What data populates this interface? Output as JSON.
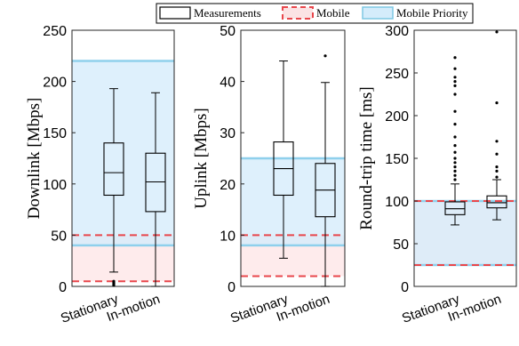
{
  "legend": {
    "items": [
      {
        "label": "Measurements",
        "style": "box",
        "stroke": "#000000",
        "fill": "#ffffff"
      },
      {
        "label": "Mobile",
        "style": "dashed-box",
        "stroke": "#e8474c",
        "fill": "#fbe3e4"
      },
      {
        "label": "Mobile Priority",
        "style": "box",
        "stroke": "#7ec8e3",
        "fill": "#d4ecfb"
      }
    ]
  },
  "colors": {
    "mobile_line": "#e8474c",
    "mobile_fill": "#fde4e6",
    "priority_line": "#8fd0ec",
    "priority_fill": "#d6ecfb",
    "box": "#000000",
    "outlier": "#000000"
  },
  "chart_data": [
    {
      "type": "box",
      "ylabel": "Downlink [Mbps]",
      "ylim": [
        0,
        250
      ],
      "yticks": [
        0,
        50,
        100,
        150,
        200,
        250
      ],
      "categories": [
        "Stationary",
        "In-motion"
      ],
      "boxes": [
        {
          "category": "Stationary",
          "whisker_low": 14,
          "q1": 89,
          "median": 111,
          "q3": 140,
          "whisker_high": 193,
          "outliers": [
            1,
            2,
            3,
            4,
            5
          ]
        },
        {
          "category": "In-motion",
          "whisker_low": 0,
          "q1": 73,
          "median": 102,
          "q3": 130,
          "whisker_high": 189,
          "outliers": []
        }
      ],
      "mobile_range": [
        5,
        50
      ],
      "priority_range": [
        40,
        220
      ]
    },
    {
      "type": "box",
      "ylabel": "Uplink [Mbps]",
      "ylim": [
        0,
        50
      ],
      "yticks": [
        0,
        10,
        20,
        30,
        40,
        50
      ],
      "categories": [
        "Stationary",
        "In-motion"
      ],
      "boxes": [
        {
          "category": "Stationary",
          "whisker_low": 5.5,
          "q1": 17.8,
          "median": 23,
          "q3": 28.2,
          "whisker_high": 44,
          "outliers": []
        },
        {
          "category": "In-motion",
          "whisker_low": 0,
          "q1": 13.6,
          "median": 18.8,
          "q3": 24,
          "whisker_high": 39.8,
          "outliers": [
            45
          ]
        }
      ],
      "mobile_range": [
        2,
        10
      ],
      "priority_range": [
        8,
        25
      ]
    },
    {
      "type": "box",
      "ylabel": "Round-trip time [ms]",
      "ylim": [
        0,
        300
      ],
      "yticks": [
        0,
        50,
        100,
        150,
        200,
        250,
        300
      ],
      "categories": [
        "Stationary",
        "In-motion"
      ],
      "boxes": [
        {
          "category": "Stationary",
          "whisker_low": 72,
          "q1": 84,
          "median": 91,
          "q3": 99,
          "whisker_high": 120,
          "outliers": [
            125,
            130,
            135,
            140,
            145,
            150,
            157,
            165,
            175,
            190,
            205,
            225,
            235,
            240,
            245,
            255,
            268
          ]
        },
        {
          "category": "In-motion",
          "whisker_low": 78,
          "q1": 92,
          "median": 98,
          "q3": 106,
          "whisker_high": 125,
          "outliers": [
            128,
            135,
            140,
            155,
            170,
            215,
            298
          ]
        }
      ],
      "mobile_range": [
        25,
        100
      ],
      "priority_range": [
        25,
        100
      ]
    }
  ]
}
